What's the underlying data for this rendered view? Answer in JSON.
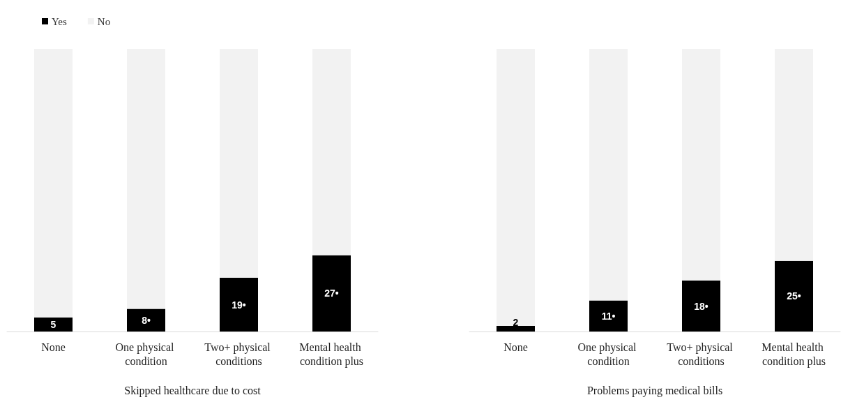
{
  "chart_data": [
    {
      "type": "bar",
      "xlabel": "Skipped healthcare due to cost",
      "categories": [
        "None",
        "One physical condition",
        "Two+ physical conditions",
        "Mental health condition plus"
      ],
      "stacked": true,
      "legend": "top left",
      "series": [
        {
          "name": "Yes",
          "color": "#000000",
          "values": [
            5,
            8,
            19,
            27
          ],
          "value_labels": [
            "5",
            "8•",
            "19•",
            "27•"
          ]
        },
        {
          "name": "No",
          "color": "#f2f2f2",
          "values": [
            95,
            92,
            81,
            73
          ]
        }
      ]
    },
    {
      "type": "bar",
      "xlabel": "Problems paying medical bills",
      "categories": [
        "None",
        "One physical condition",
        "Two+ physical conditions",
        "Mental health condition plus"
      ],
      "stacked": true,
      "series": [
        {
          "color": "#000000",
          "values": [
            2,
            11,
            18,
            25
          ],
          "value_labels": [
            "2",
            "11•",
            "18•",
            "25•"
          ]
        },
        {
          "color": "#f2f2f2",
          "values": [
            98,
            89,
            82,
            75
          ]
        }
      ]
    }
  ]
}
